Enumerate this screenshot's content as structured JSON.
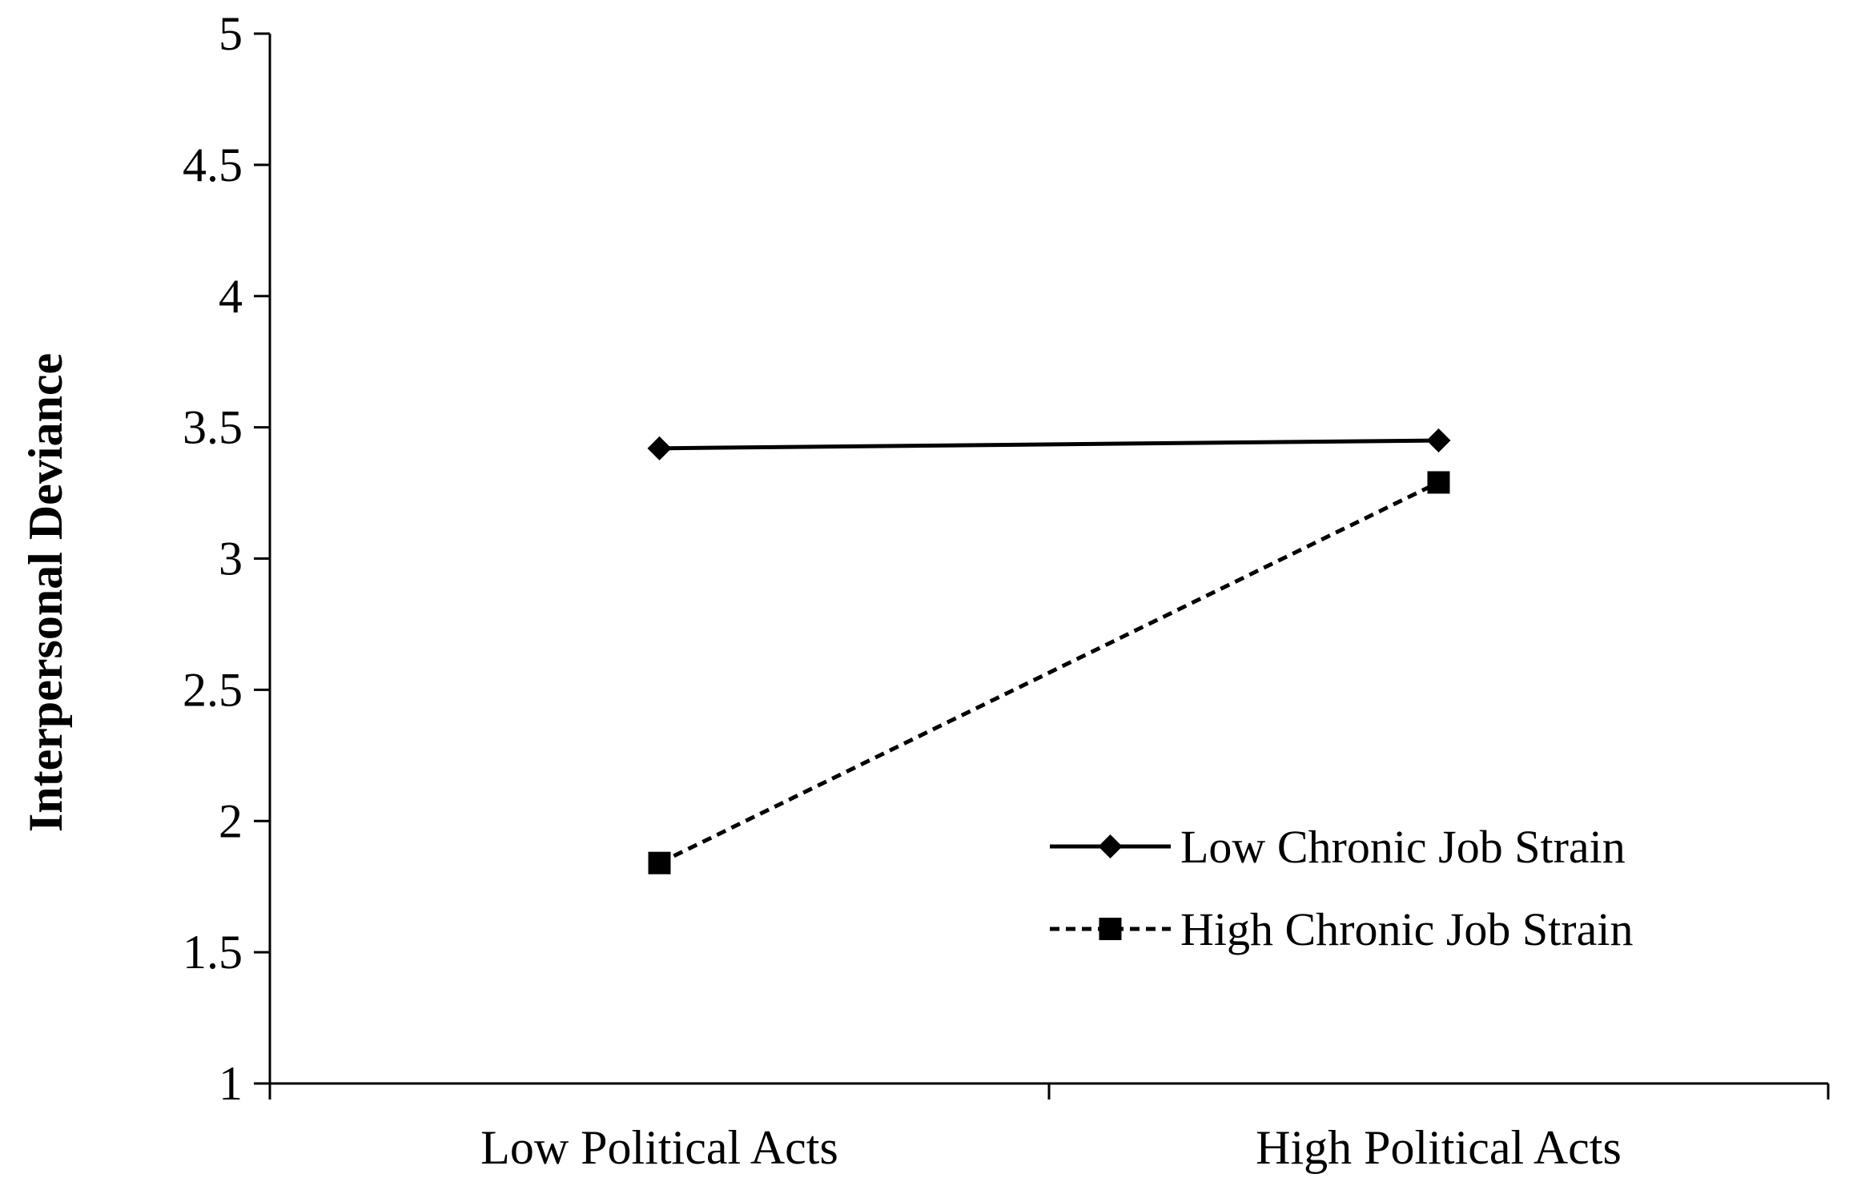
{
  "chart_data": {
    "type": "line",
    "title": "",
    "xlabel": "",
    "ylabel": "Interpersonal Deviance",
    "categories": [
      "Low Political Acts",
      "High Political Acts"
    ],
    "ylim": [
      1,
      5
    ],
    "yticks": [
      1,
      1.5,
      2,
      2.5,
      3,
      3.5,
      4,
      4.5,
      5
    ],
    "ytick_labels": [
      "1",
      "1.5",
      "2",
      "2.5",
      "3",
      "3.5",
      "4",
      "4.5",
      "5"
    ],
    "grid": false,
    "legend_position": "bottom-right",
    "series": [
      {
        "name": "Low Chronic Job Strain",
        "values": [
          3.42,
          3.45
        ],
        "line_style": "solid",
        "marker": "diamond",
        "color": "#000000"
      },
      {
        "name": "High Chronic Job Strain",
        "values": [
          1.84,
          3.29
        ],
        "line_style": "dashed",
        "marker": "square",
        "color": "#000000"
      }
    ]
  }
}
